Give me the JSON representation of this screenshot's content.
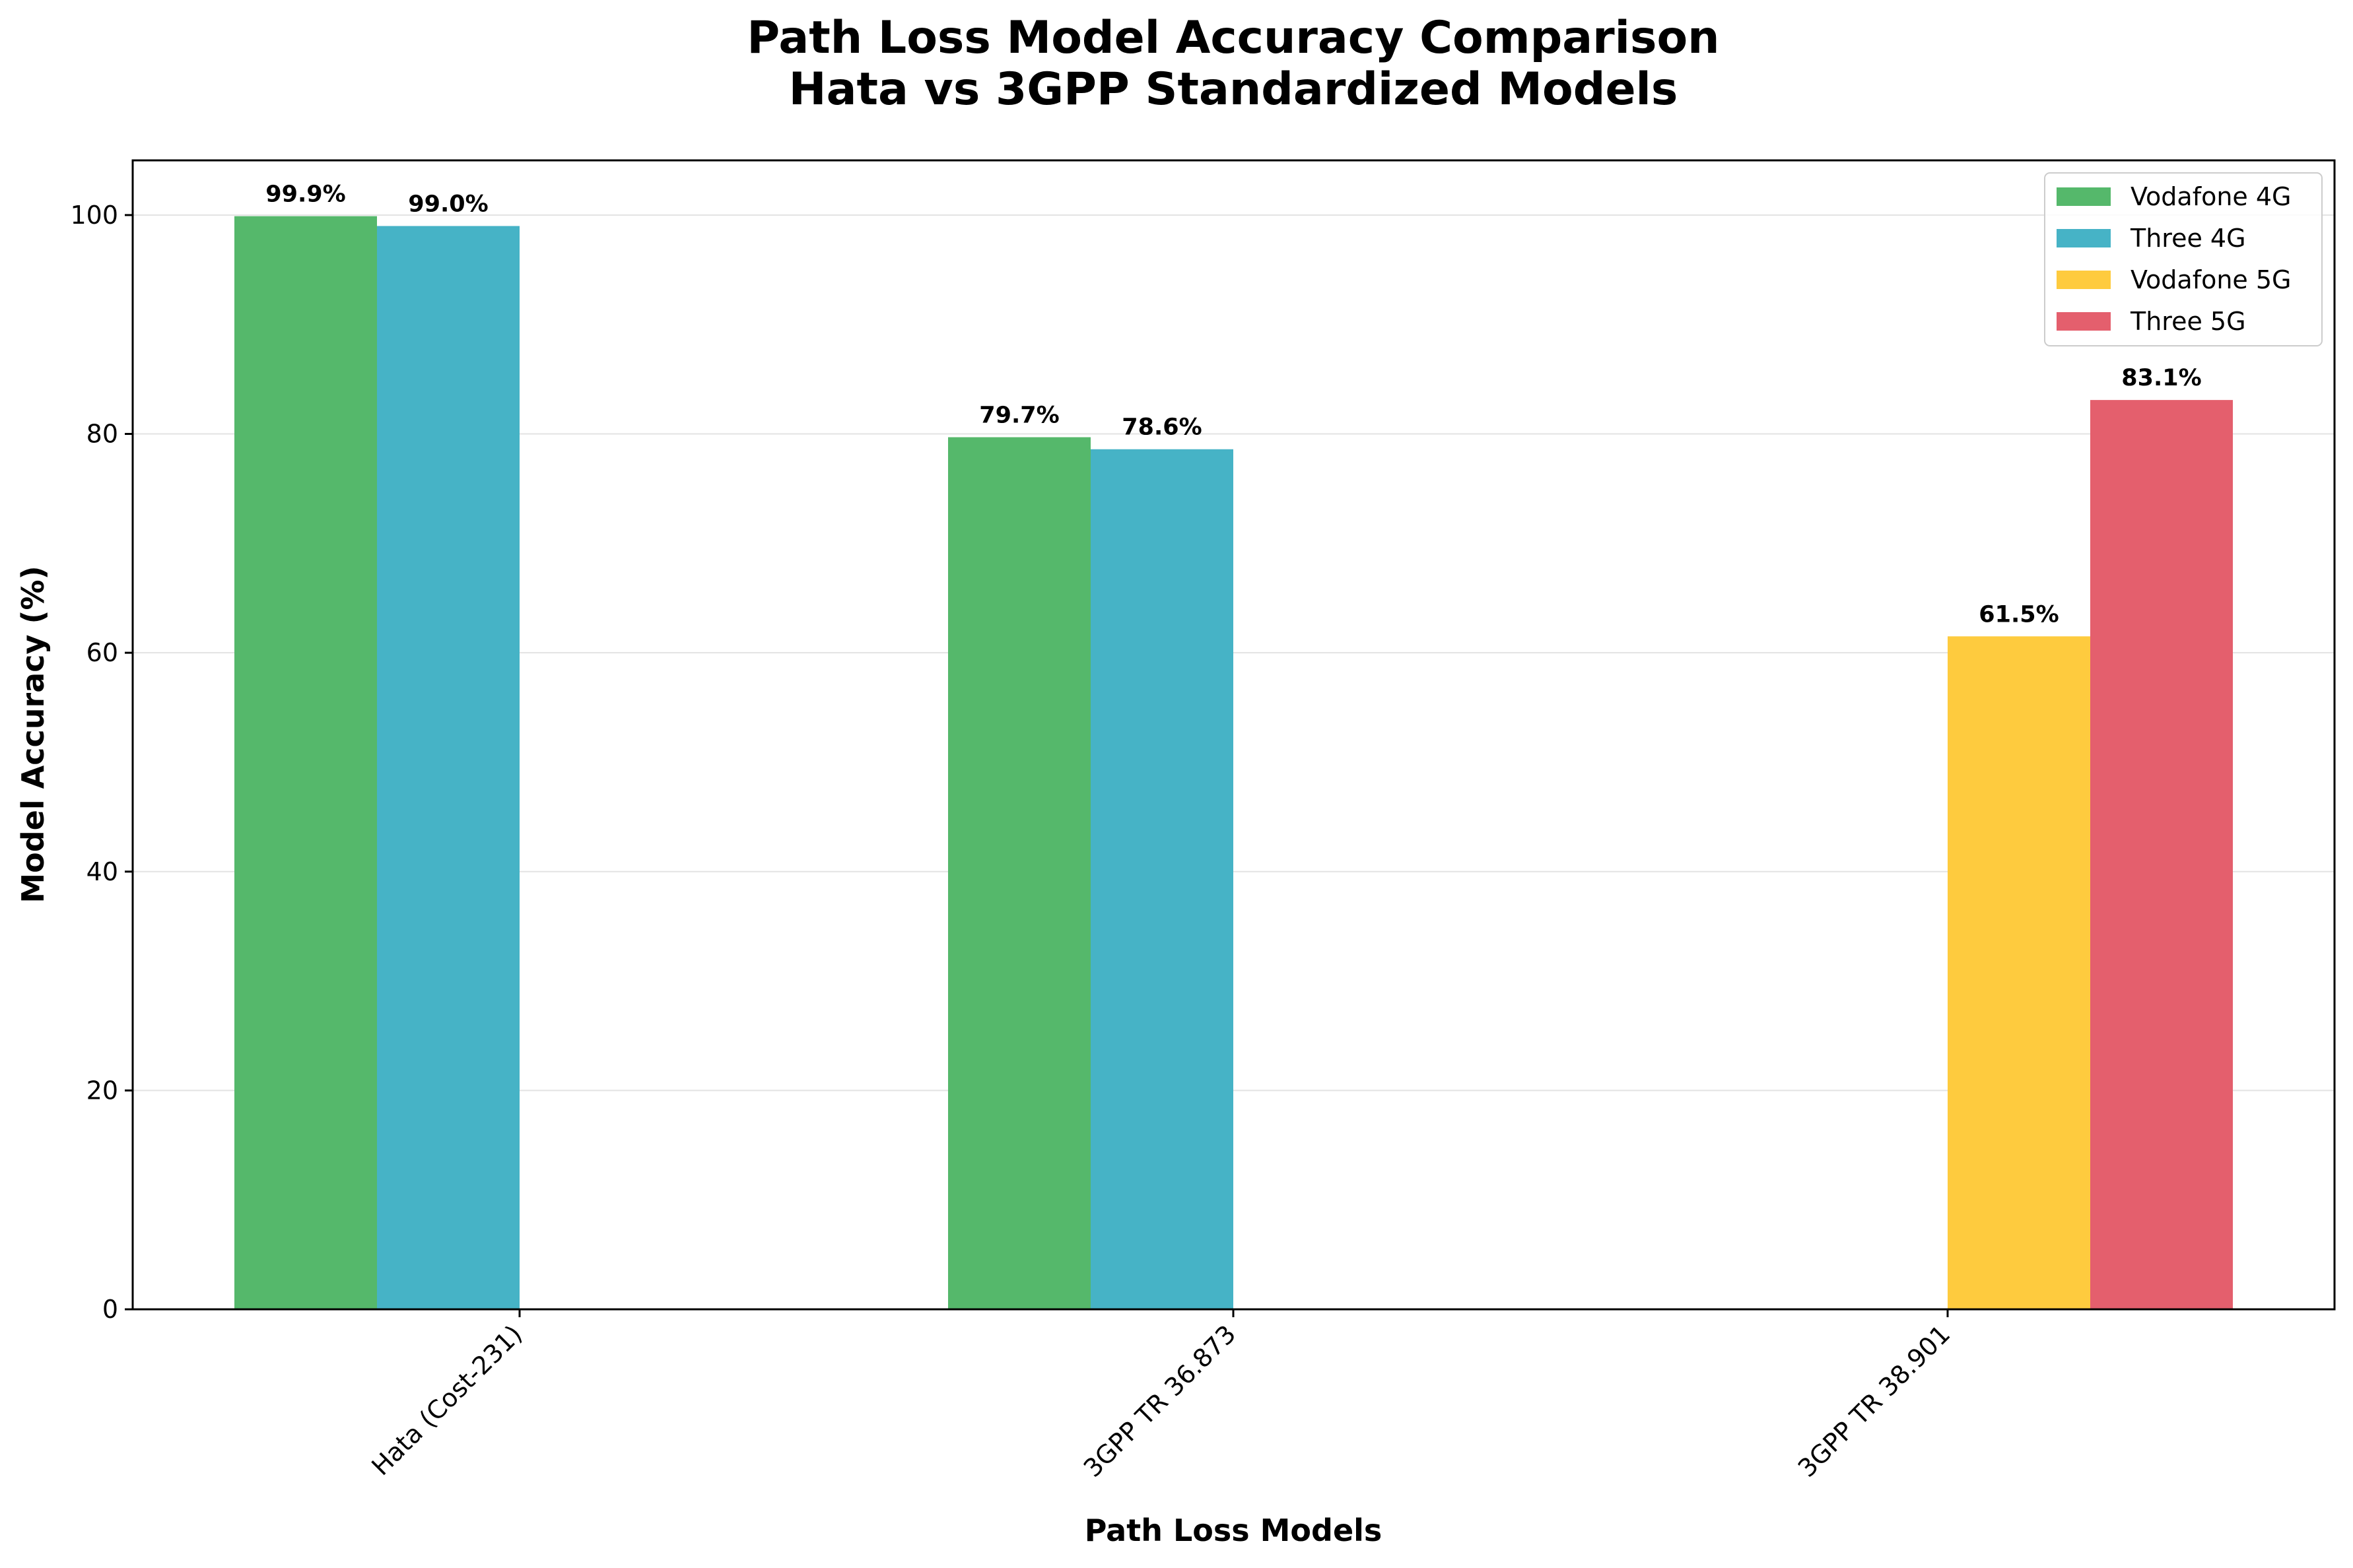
{
  "chart_data": {
    "type": "bar",
    "title": "Path Loss Model Accuracy Comparison",
    "subtitle": "Hata vs 3GPP Standardized Models",
    "xlabel": "Path Loss Models",
    "ylabel": "Model Accuracy (%)",
    "categories": [
      "Hata (Cost-231)",
      "3GPP TR 36.873",
      "3GPP TR 38.901"
    ],
    "ylim": [
      0,
      105
    ],
    "yticks": [
      0,
      20,
      40,
      60,
      80,
      100
    ],
    "grid": "y",
    "legend_position": "top-right",
    "series": [
      {
        "name": "Vodafone 4G",
        "color": "#55b86b",
        "values": [
          99.9,
          79.7,
          null
        ],
        "labels": [
          "99.9%",
          "79.7%",
          ""
        ]
      },
      {
        "name": "Three 4G",
        "color": "#46b3c6",
        "values": [
          99.0,
          78.6,
          null
        ],
        "labels": [
          "99.0%",
          "78.6%",
          ""
        ]
      },
      {
        "name": "Vodafone 5G",
        "color": "#fecb3e",
        "values": [
          null,
          null,
          61.5
        ],
        "labels": [
          "",
          "",
          "61.5%"
        ]
      },
      {
        "name": "Three 5G",
        "color": "#e45f6d",
        "values": [
          null,
          null,
          83.1
        ],
        "labels": [
          "",
          "",
          "83.1%"
        ]
      }
    ]
  }
}
